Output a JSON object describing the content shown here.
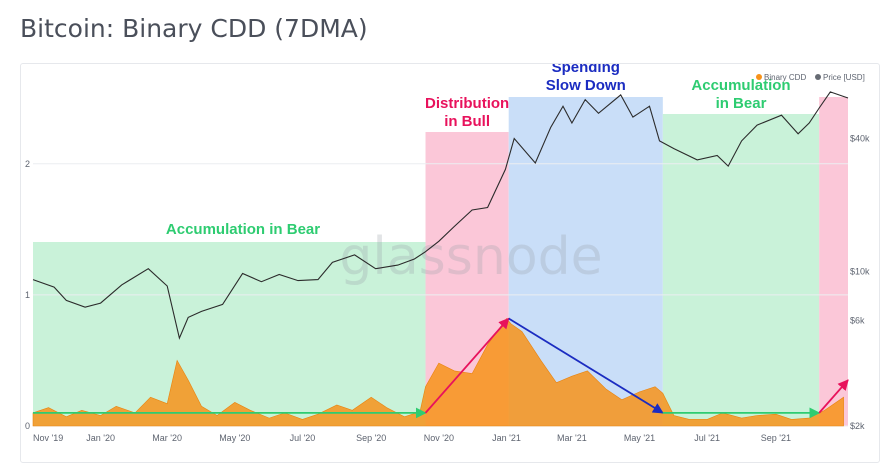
{
  "title": "Bitcoin: Binary CDD (7DMA)",
  "watermark": "glassnode",
  "colors": {
    "accumulation": "#2ecc71",
    "distribution": "#e8125c",
    "spending": "#1b2cc1",
    "cdd": "#f7931a",
    "price": "#2b2b2b"
  },
  "chart_data": {
    "type": "area",
    "title": "Bitcoin: Binary CDD (7DMA)",
    "x_ticks": [
      "Nov '19",
      "Jan '20",
      "Mar '20",
      "May '20",
      "Jul '20",
      "Sep '20",
      "Nov '20",
      "Jan '21",
      "Mar '21",
      "May '21",
      "Jul '21",
      "Sep '21"
    ],
    "left_axis": {
      "ticks": [
        "0",
        "1",
        "2"
      ],
      "ylim": [
        0,
        2.7
      ]
    },
    "right_axis": {
      "scale": "log",
      "ticks": [
        "$2k",
        "$6k",
        "$10k",
        "$40k"
      ]
    },
    "legend": {
      "position": "top-right",
      "items": [
        "Binary CDD",
        "Price [USD]"
      ]
    },
    "regions": [
      {
        "label_lines": [
          "Accumulation in Bear"
        ],
        "start": "2019-11-01",
        "end": "2020-10-20",
        "color": "#c9f2d9"
      },
      {
        "label_lines": [
          "Distribution",
          "in Bull"
        ],
        "start": "2020-10-20",
        "end": "2021-01-03",
        "color": "#fbc7d8"
      },
      {
        "label_lines": [
          "Spending",
          "Slow Down"
        ],
        "start": "2021-01-03",
        "end": "2021-05-22",
        "color": "#c9def8"
      },
      {
        "label_lines": [
          "Accumulation",
          "in Bear"
        ],
        "start": "2021-05-22",
        "end": "2021-10-10",
        "color": "#c9f2d9"
      },
      {
        "label_lines": [],
        "start": "2021-10-10",
        "end": "2021-11-05",
        "color": "#fbc7d8"
      }
    ],
    "series": [
      {
        "name": "Binary CDD",
        "axis": "left",
        "x": [
          "2019-11-01",
          "2019-11-15",
          "2019-12-01",
          "2019-12-15",
          "2020-01-01",
          "2020-01-15",
          "2020-02-01",
          "2020-02-15",
          "2020-03-01",
          "2020-03-10",
          "2020-03-20",
          "2020-04-01",
          "2020-04-15",
          "2020-05-01",
          "2020-05-15",
          "2020-06-01",
          "2020-06-15",
          "2020-07-01",
          "2020-07-15",
          "2020-08-01",
          "2020-08-15",
          "2020-09-01",
          "2020-09-15",
          "2020-10-01",
          "2020-10-15",
          "2020-10-20",
          "2020-11-01",
          "2020-11-15",
          "2020-12-01",
          "2020-12-15",
          "2021-01-01",
          "2021-01-05",
          "2021-01-15",
          "2021-02-01",
          "2021-02-15",
          "2021-03-01",
          "2021-03-15",
          "2021-04-01",
          "2021-04-15",
          "2021-05-01",
          "2021-05-15",
          "2021-05-22",
          "2021-06-01",
          "2021-06-15",
          "2021-07-01",
          "2021-07-15",
          "2021-08-01",
          "2021-08-15",
          "2021-09-01",
          "2021-09-15",
          "2021-10-01",
          "2021-10-15",
          "2021-11-01"
        ],
        "values": [
          0.1,
          0.14,
          0.07,
          0.12,
          0.08,
          0.15,
          0.1,
          0.22,
          0.17,
          0.5,
          0.35,
          0.15,
          0.08,
          0.18,
          0.12,
          0.06,
          0.1,
          0.05,
          0.09,
          0.16,
          0.12,
          0.22,
          0.14,
          0.07,
          0.11,
          0.3,
          0.48,
          0.42,
          0.4,
          0.62,
          0.82,
          0.78,
          0.72,
          0.5,
          0.33,
          0.38,
          0.42,
          0.28,
          0.2,
          0.26,
          0.3,
          0.25,
          0.08,
          0.05,
          0.05,
          0.1,
          0.06,
          0.08,
          0.09,
          0.05,
          0.06,
          0.12,
          0.22
        ]
      },
      {
        "name": "Price [USD]",
        "axis": "right",
        "x": [
          "2019-11-01",
          "2019-11-20",
          "2019-12-01",
          "2019-12-18",
          "2020-01-01",
          "2020-01-20",
          "2020-02-13",
          "2020-03-01",
          "2020-03-12",
          "2020-03-20",
          "2020-04-01",
          "2020-04-20",
          "2020-05-08",
          "2020-05-25",
          "2020-06-10",
          "2020-06-27",
          "2020-07-15",
          "2020-07-28",
          "2020-08-17",
          "2020-09-05",
          "2020-09-25",
          "2020-10-10",
          "2020-10-20",
          "2020-11-01",
          "2020-11-15",
          "2020-12-01",
          "2020-12-15",
          "2020-12-31",
          "2021-01-08",
          "2021-01-27",
          "2021-02-10",
          "2021-02-21",
          "2021-03-01",
          "2021-03-13",
          "2021-03-25",
          "2021-04-14",
          "2021-04-25",
          "2021-05-10",
          "2021-05-19",
          "2021-06-01",
          "2021-06-22",
          "2021-07-10",
          "2021-07-20",
          "2021-08-01",
          "2021-08-15",
          "2021-09-06",
          "2021-09-21",
          "2021-10-01",
          "2021-10-10",
          "2021-10-20",
          "2021-11-05"
        ],
        "values": [
          9200,
          8500,
          7400,
          6900,
          7200,
          8700,
          10300,
          8600,
          5000,
          6200,
          6600,
          7100,
          9800,
          9000,
          9700,
          9100,
          9200,
          11000,
          11900,
          10300,
          10700,
          11400,
          12300,
          13700,
          16000,
          19000,
          19500,
          29000,
          40000,
          31000,
          45000,
          56000,
          47000,
          60000,
          52000,
          63000,
          50000,
          56000,
          39000,
          36000,
          32000,
          33500,
          30000,
          39000,
          46000,
          51000,
          42000,
          47000,
          55000,
          65000,
          61000
        ]
      }
    ],
    "annotations": [
      {
        "type": "arrow",
        "color": "#2ecc71",
        "from": [
          "2019-11-01",
          0.1
        ],
        "to": [
          "2020-10-20",
          0.1
        ]
      },
      {
        "type": "arrow",
        "color": "#e8125c",
        "from": [
          "2020-10-20",
          0.1
        ],
        "to": [
          "2021-01-03",
          0.82
        ]
      },
      {
        "type": "arrow",
        "color": "#1b2cc1",
        "from": [
          "2021-01-03",
          0.82
        ],
        "to": [
          "2021-05-22",
          0.1
        ]
      },
      {
        "type": "arrow",
        "color": "#2ecc71",
        "from": [
          "2021-05-22",
          0.1
        ],
        "to": [
          "2021-10-10",
          0.1
        ]
      },
      {
        "type": "arrow",
        "color": "#e8125c",
        "from": [
          "2021-10-10",
          0.1
        ],
        "to": [
          "2021-11-05",
          0.35
        ]
      }
    ]
  }
}
